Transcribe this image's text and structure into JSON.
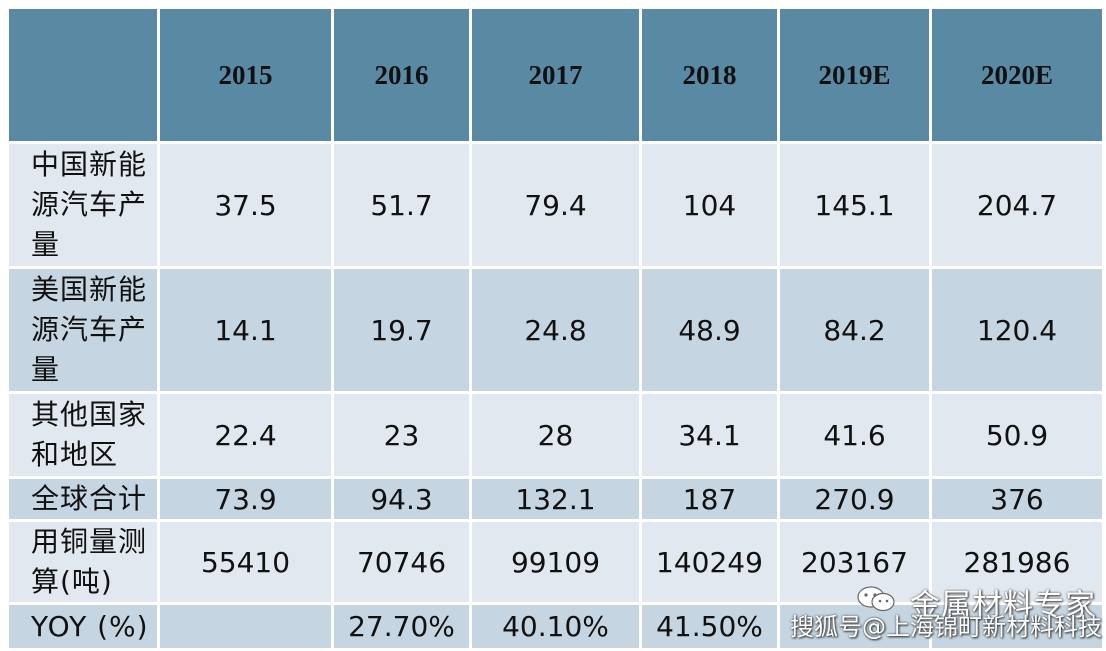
{
  "table": {
    "columns": [
      "",
      "2015",
      "2016",
      "2017",
      "2018",
      "2019E",
      "2020E"
    ],
    "rows": [
      {
        "label": "中国新能源汽车产量",
        "values": [
          "37.5",
          "51.7",
          "79.4",
          "104",
          "145.1",
          "204.7"
        ]
      },
      {
        "label": "美国新能源汽车产量",
        "values": [
          "14.1",
          "19.7",
          "24.8",
          "48.9",
          "84.2",
          "120.4"
        ]
      },
      {
        "label": "其他国家和地区",
        "values": [
          "22.4",
          "23",
          "28",
          "34.1",
          "41.6",
          "50.9"
        ]
      },
      {
        "label": "全球合计",
        "values": [
          "73.9",
          "94.3",
          "132.1",
          "187",
          "270.9",
          "376"
        ]
      },
      {
        "label": "用铜量测算(吨)",
        "values": [
          "55410",
          "70746",
          "99109",
          "140249",
          "203167",
          "281986"
        ]
      },
      {
        "label": "YOY (%)",
        "values": [
          "",
          "27.70%",
          "40.10%",
          "41.50%",
          "",
          ""
        ]
      }
    ]
  },
  "watermark": {
    "line1": "金属材料专家",
    "line2": "搜狐号@上海锦町新材料科技",
    "icon": "wechat-icon"
  },
  "colors": {
    "header_bg": "#5a8aa3",
    "row_light": "#e1e8ef",
    "row_dark": "#c5d5e1"
  }
}
